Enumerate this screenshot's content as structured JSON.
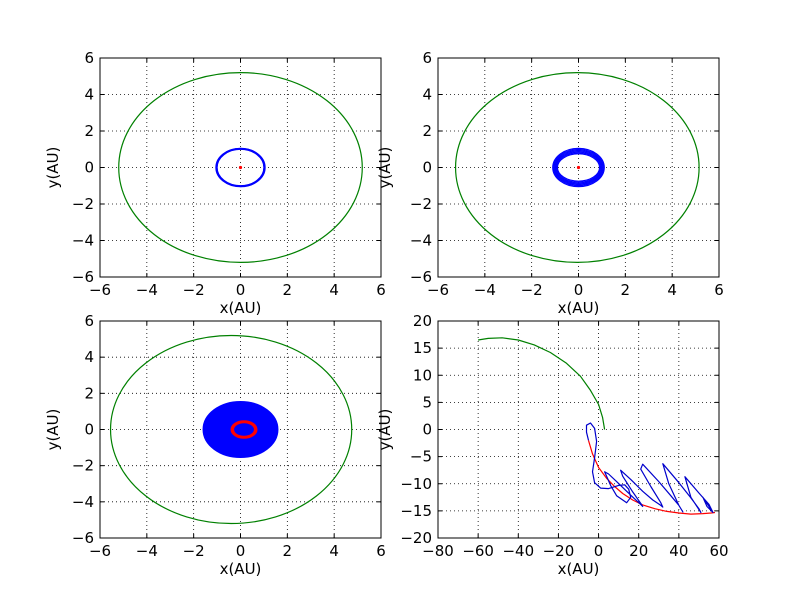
{
  "chart_data": [
    {
      "type": "line",
      "xlabel": "x(AU)",
      "ylabel": "y(AU)",
      "xlim": [
        -6,
        6
      ],
      "ylim": [
        -6,
        6
      ],
      "xticks": [
        -6,
        -4,
        -2,
        0,
        2,
        4,
        6
      ],
      "yticks": [
        -6,
        -4,
        -2,
        0,
        2,
        4,
        6
      ],
      "grid": true,
      "series": [
        {
          "color": "#008000",
          "shape": "ellipse",
          "cx": 0,
          "cy": 0,
          "rx": 5.2,
          "ry": 5.2,
          "line_width": 1.2
        },
        {
          "color": "#0000ff",
          "shape": "ellipse_band",
          "cx": 0,
          "cy": 0,
          "rx": [
            1.0,
            1.05
          ],
          "ry": [
            1.0,
            1.05
          ],
          "line_width": 1.2
        },
        {
          "color": "#ff0000",
          "shape": "point",
          "cx": 0,
          "cy": 0
        }
      ]
    },
    {
      "type": "line",
      "xlabel": "x(AU)",
      "ylabel": "y(AU)",
      "xlim": [
        -6,
        6
      ],
      "ylim": [
        -6,
        6
      ],
      "xticks": [
        -6,
        -4,
        -2,
        0,
        2,
        4,
        6
      ],
      "yticks": [
        -6,
        -4,
        -2,
        0,
        2,
        4,
        6
      ],
      "grid": true,
      "series": [
        {
          "color": "#008000",
          "shape": "ellipse",
          "cx": -0.05,
          "cy": 0,
          "rx": 5.2,
          "ry": 5.2,
          "line_width": 1.2
        },
        {
          "color": "#0000ff",
          "shape": "ellipse_band",
          "cx": 0,
          "cy": 0,
          "rx": [
            0.9,
            1.1
          ],
          "ry": [
            0.75,
            1.05
          ],
          "line_width": 1.2
        },
        {
          "color": "#ff0000",
          "shape": "point",
          "cx": 0,
          "cy": 0
        }
      ]
    },
    {
      "type": "line",
      "xlabel": "x(AU)",
      "ylabel": "y(AU)",
      "xlim": [
        -6,
        6
      ],
      "ylim": [
        -6,
        6
      ],
      "xticks": [
        -6,
        -4,
        -2,
        0,
        2,
        4,
        6
      ],
      "yticks": [
        -6,
        -4,
        -2,
        0,
        2,
        4,
        6
      ],
      "grid": true,
      "series": [
        {
          "color": "#008000",
          "shape": "ellipse",
          "cx": -0.4,
          "cy": 0,
          "rx": 5.15,
          "ry": 5.2,
          "line_width": 1.2
        },
        {
          "color": "#0000ff",
          "shape": "ellipse_filled",
          "cx": 0,
          "cy": 0,
          "rx": 1.6,
          "ry": 1.55
        },
        {
          "color": "#ff0000",
          "shape": "ellipse_band",
          "cx": 0.15,
          "cy": 0,
          "rx": [
            0.45,
            0.55
          ],
          "ry": [
            0.38,
            0.48
          ],
          "line_width": 1.2
        }
      ]
    },
    {
      "type": "line",
      "xlabel": "x(AU)",
      "ylabel": "y(AU)",
      "xlim": [
        -80,
        60
      ],
      "ylim": [
        -20,
        20
      ],
      "xticks": [
        -80,
        -60,
        -40,
        -20,
        0,
        20,
        40,
        60
      ],
      "yticks": [
        -20,
        -15,
        -10,
        -5,
        0,
        5,
        10,
        15,
        20
      ],
      "grid": true,
      "series": [
        {
          "color": "#008000",
          "shape": "polyline",
          "line_width": 1.2,
          "x": [
            3,
            2,
            0,
            -4,
            -9,
            -16,
            -24,
            -32,
            -40,
            -48,
            -55,
            -60
          ],
          "y": [
            0,
            2.2,
            4.6,
            7.2,
            9.8,
            12.2,
            14.2,
            15.6,
            16.5,
            16.9,
            16.8,
            16.5
          ]
        },
        {
          "color": "#ff0000",
          "shape": "polyline",
          "line_width": 1.2,
          "x": [
            -5,
            -3,
            0,
            4,
            8,
            12,
            17,
            22,
            28,
            34,
            40,
            46,
            52,
            56,
            58
          ],
          "y": [
            -2,
            -4.5,
            -7,
            -9,
            -10.5,
            -11.8,
            -13,
            -13.9,
            -14.6,
            -15.1,
            -15.4,
            -15.6,
            -15.5,
            -15.4,
            -15.3
          ]
        },
        {
          "color": "#0000cc",
          "shape": "polyline",
          "line_width": 1.2,
          "x": [
            -5,
            -6,
            -6,
            -4,
            -2,
            -1,
            -2,
            -3,
            -2,
            1,
            5,
            10,
            13,
            15,
            16,
            14,
            9,
            6,
            4,
            3,
            5,
            9,
            14,
            18,
            21,
            22,
            21,
            17,
            12,
            11,
            16,
            22,
            27,
            31,
            32,
            31,
            26,
            21,
            22,
            30,
            36,
            40,
            42,
            40,
            35,
            32,
            40,
            46,
            50,
            51,
            46,
            43,
            50,
            55,
            57,
            54,
            52,
            57
          ],
          "y": [
            -2,
            -0.5,
            0.8,
            1.2,
            0.2,
            -2.2,
            -5.2,
            -7.8,
            -9.8,
            -10.8,
            -10.9,
            -10.3,
            -10.2,
            -11,
            -12.5,
            -13.5,
            -12.2,
            -10.3,
            -8.6,
            -7.8,
            -8.2,
            -9.6,
            -11.4,
            -12.8,
            -13.8,
            -14.2,
            -13.6,
            -11.5,
            -8.6,
            -7.5,
            -9.2,
            -11.4,
            -13,
            -14,
            -14.3,
            -13.5,
            -10.5,
            -7.3,
            -6.4,
            -9.6,
            -12.2,
            -14,
            -15.2,
            -14,
            -10,
            -6.3,
            -9.8,
            -12.6,
            -14.6,
            -15.3,
            -12.5,
            -8.7,
            -11.7,
            -13.8,
            -15.3,
            -14.2,
            -12.5,
            -15.3
          ]
        }
      ]
    }
  ]
}
